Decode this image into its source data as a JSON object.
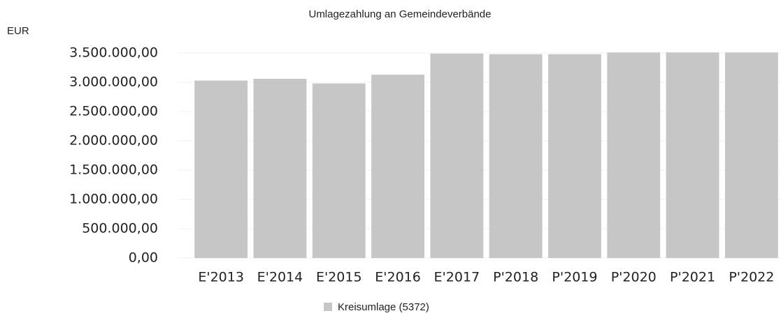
{
  "chart_data": {
    "type": "bar",
    "title": "Umlagezahlung an Gemeindeverbände",
    "y_label": "EUR",
    "categories": [
      "E'2013",
      "E'2014",
      "E'2015",
      "E'2016",
      "E'2017",
      "P'2018",
      "P'2019",
      "P'2020",
      "P'2021",
      "P'2022"
    ],
    "series": [
      {
        "name": "Kreisumlage (5372)",
        "color": "#c6c6c6",
        "values": [
          3030000,
          3060000,
          2980000,
          3130000,
          3490000,
          3480000,
          3480000,
          3510000,
          3510000,
          3510000
        ]
      }
    ],
    "ylim": [
      0,
      3600000
    ],
    "yticks": [
      {
        "value": 0,
        "label": "0,00"
      },
      {
        "value": 500000,
        "label": "500.000,00"
      },
      {
        "value": 1000000,
        "label": "1.000.000,00"
      },
      {
        "value": 1500000,
        "label": "1.500.000,00"
      },
      {
        "value": 2000000,
        "label": "2.000.000,00"
      },
      {
        "value": 2500000,
        "label": "2.500.000,00"
      },
      {
        "value": 3000000,
        "label": "3.000.000,00"
      },
      {
        "value": 3500000,
        "label": "3.500.000,00"
      }
    ],
    "grid": true,
    "legend": "bottom"
  }
}
